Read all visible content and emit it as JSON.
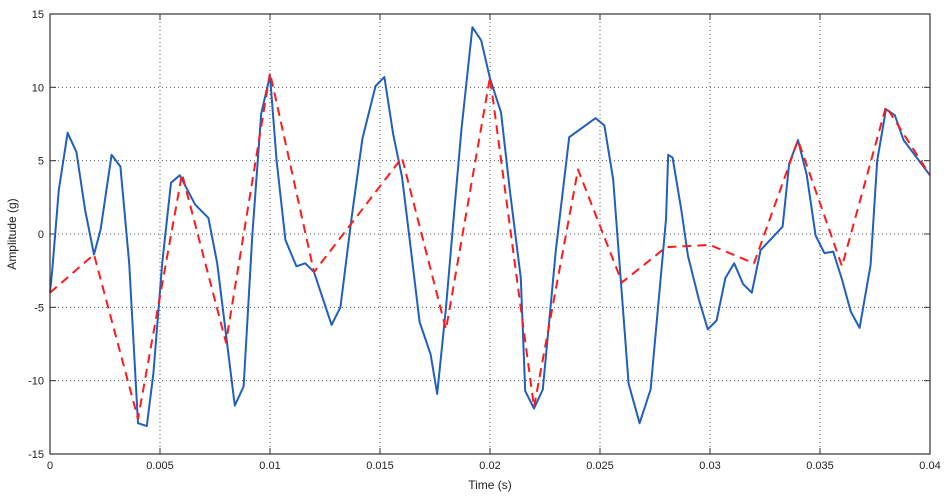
{
  "chart_data": {
    "type": "line",
    "title": "",
    "xlabel": "Time (s)",
    "ylabel": "Amplitude (g)",
    "xlim": [
      0,
      0.04
    ],
    "ylim": [
      -15,
      15
    ],
    "grid": true,
    "legend": null,
    "x_ticks": [
      0,
      0.005,
      0.01,
      0.015,
      0.02,
      0.025,
      0.03,
      0.035,
      0.04
    ],
    "x_tick_labels": [
      "0",
      "0.005",
      "0.01",
      "0.015",
      "0.02",
      "0.025",
      "0.03",
      "0.035",
      "0.04"
    ],
    "y_ticks": [
      -15,
      -10,
      -5,
      0,
      5,
      10,
      15
    ],
    "y_tick_labels": [
      "-15",
      "-10",
      "-5",
      "0",
      "5",
      "10",
      "15"
    ],
    "series": [
      {
        "name": "signal",
        "style": "solid",
        "color": "#1f5fbf",
        "x": [
          0,
          0.0001,
          0.0004,
          0.0008,
          0.0012,
          0.0016,
          0.002,
          0.0023,
          0.0028,
          0.0032,
          0.0036,
          0.004,
          0.0044,
          0.0047,
          0.0051,
          0.0055,
          0.0059,
          0.0066,
          0.0072,
          0.0076,
          0.0084,
          0.0088,
          0.0092,
          0.0096,
          0.01,
          0.0103,
          0.0107,
          0.0112,
          0.0116,
          0.012,
          0.0128,
          0.0132,
          0.0137,
          0.0142,
          0.0148,
          0.0152,
          0.0156,
          0.016,
          0.0164,
          0.0168,
          0.0173,
          0.0176,
          0.018,
          0.0184,
          0.0187,
          0.0192,
          0.0196,
          0.02,
          0.0205,
          0.0209,
          0.0214,
          0.0216,
          0.022,
          0.0224,
          0.023,
          0.0236,
          0.0248,
          0.0252,
          0.0256,
          0.0263,
          0.0268,
          0.0273,
          0.028,
          0.0281,
          0.0283,
          0.0287,
          0.029,
          0.0295,
          0.0299,
          0.0303,
          0.0307,
          0.0311,
          0.0315,
          0.0319,
          0.0323,
          0.0333,
          0.0336,
          0.034,
          0.0344,
          0.0348,
          0.0352,
          0.0356,
          0.036,
          0.0364,
          0.0368,
          0.0373,
          0.0376,
          0.038,
          0.0384,
          0.0388,
          0.0395,
          0.04
        ],
        "y": [
          -4.0,
          -2.5,
          3.0,
          6.9,
          5.6,
          1.6,
          -1.4,
          0.3,
          5.4,
          4.6,
          -2.0,
          -12.9,
          -13.1,
          -9.5,
          -2.0,
          3.5,
          4.0,
          2.0,
          1.1,
          -2.0,
          -11.7,
          -10.4,
          0.0,
          8.2,
          10.8,
          5.0,
          -0.4,
          -2.2,
          -2.0,
          -2.6,
          -6.2,
          -5.0,
          1.0,
          6.5,
          10.1,
          10.7,
          6.8,
          3.9,
          -1.0,
          -6.0,
          -8.2,
          -10.9,
          -5.0,
          2.0,
          7.1,
          14.1,
          13.2,
          10.6,
          8.3,
          3.0,
          -3.0,
          -10.7,
          -11.9,
          -10.6,
          -1.0,
          6.6,
          7.9,
          7.4,
          3.7,
          -10.2,
          -12.9,
          -10.6,
          1.0,
          5.4,
          5.2,
          1.6,
          -1.5,
          -4.5,
          -6.5,
          -5.9,
          -3.0,
          -2.0,
          -3.4,
          -4.0,
          -1.1,
          0.5,
          4.8,
          6.4,
          4.0,
          -0.1,
          -1.3,
          -1.2,
          -3.1,
          -5.3,
          -6.4,
          -2.1,
          5.0,
          8.5,
          8.1,
          6.4,
          5.0,
          4.0
        ]
      },
      {
        "name": "reference",
        "style": "dashed",
        "color": "#ff1a1a",
        "x": [
          0,
          0.002,
          0.004,
          0.006,
          0.008,
          0.01,
          0.012,
          0.016,
          0.018,
          0.02,
          0.022,
          0.024,
          0.026,
          0.028,
          0.03,
          0.032,
          0.034,
          0.036,
          0.038,
          0.04
        ],
        "y": [
          -4.0,
          -1.4,
          -12.6,
          4.1,
          -7.4,
          11.0,
          -2.6,
          5.2,
          -6.5,
          10.7,
          -11.8,
          4.4,
          -3.3,
          -0.9,
          -0.75,
          -2.0,
          6.4,
          -2.2,
          8.7,
          4.0
        ]
      }
    ]
  },
  "labels": {
    "xlabel": "Time (s)",
    "ylabel": "Amplitude (g)"
  }
}
